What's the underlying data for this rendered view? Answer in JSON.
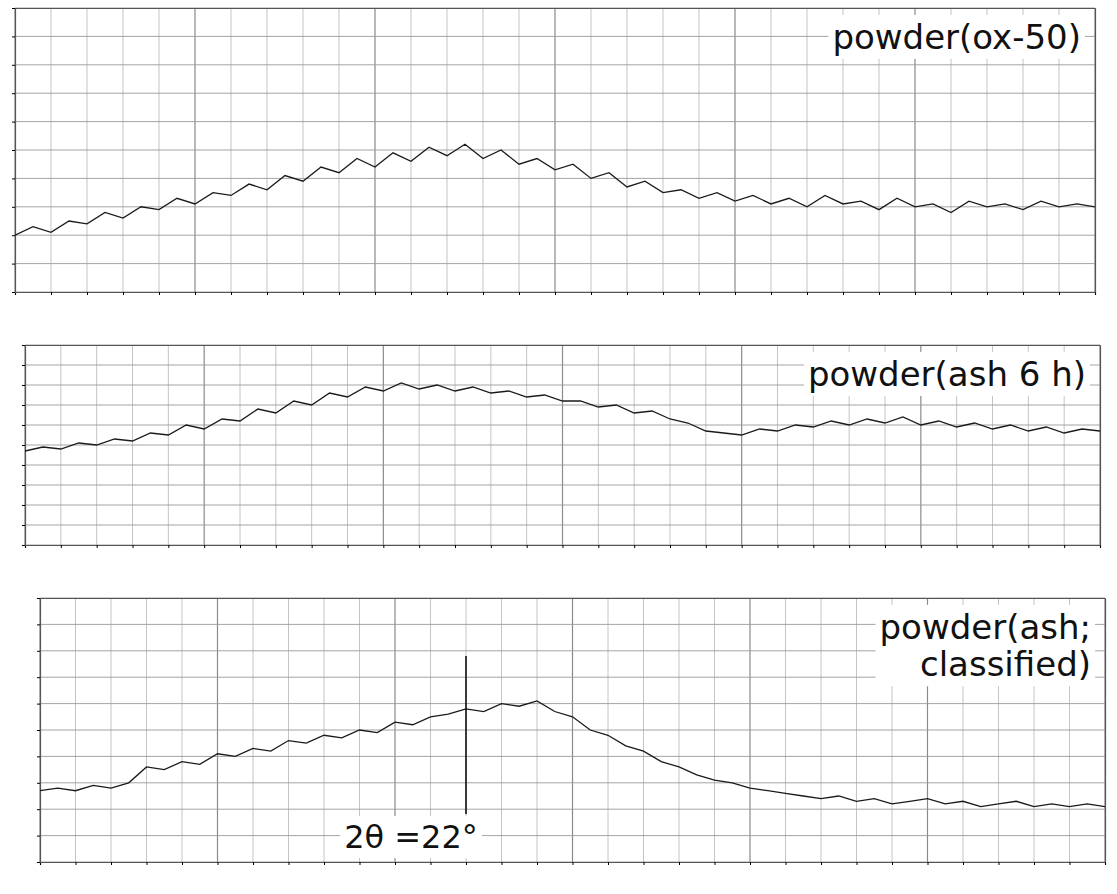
{
  "chart_data": [
    {
      "type": "line",
      "title": "powder(ox-50)",
      "color": "#1a1a1a",
      "grid": true,
      "tick_labels": false,
      "xlim": [
        10,
        40
      ],
      "ylim": [
        0,
        100
      ],
      "xticks": [
        10,
        11,
        12,
        13,
        14,
        15,
        16,
        17,
        18,
        19,
        20,
        21,
        22,
        23,
        24,
        25,
        26,
        27,
        28,
        29,
        30,
        31,
        32,
        33,
        34,
        35,
        36,
        37,
        38,
        39,
        40
      ],
      "yticks": [
        0,
        10,
        20,
        30,
        40,
        50,
        60,
        70,
        80,
        90,
        100
      ],
      "x": [
        10,
        10.5,
        11,
        11.5,
        12,
        12.5,
        13,
        13.5,
        14,
        14.5,
        15,
        15.5,
        16,
        16.5,
        17,
        17.5,
        18,
        18.5,
        19,
        19.5,
        20,
        20.5,
        21,
        21.5,
        22,
        22.5,
        23,
        23.5,
        24,
        24.5,
        25,
        25.5,
        26,
        26.5,
        27,
        27.5,
        28,
        28.5,
        29,
        29.5,
        30,
        30.5,
        31,
        31.5,
        32,
        32.5,
        33,
        33.5,
        34,
        34.5,
        35,
        35.5,
        36,
        36.5,
        37,
        37.5,
        38,
        38.5,
        39,
        39.5,
        40
      ],
      "values": [
        20,
        23,
        21,
        25,
        24,
        28,
        26,
        30,
        29,
        33,
        31,
        35,
        34,
        38,
        36,
        41,
        39,
        44,
        42,
        47,
        44,
        49,
        46,
        51,
        48,
        52,
        47,
        50,
        45,
        47,
        43,
        45,
        40,
        42,
        37,
        39,
        35,
        36,
        33,
        35,
        32,
        34,
        31,
        33,
        30,
        34,
        31,
        32,
        29,
        33,
        30,
        31,
        28,
        32,
        30,
        31,
        29,
        32,
        30,
        31,
        30
      ]
    },
    {
      "type": "line",
      "title": "powder(ash 6 h)",
      "color": "#1a1a1a",
      "grid": true,
      "tick_labels": false,
      "xlim": [
        10,
        40
      ],
      "ylim": [
        0,
        100
      ],
      "xticks": [
        10,
        11,
        12,
        13,
        14,
        15,
        16,
        17,
        18,
        19,
        20,
        21,
        22,
        23,
        24,
        25,
        26,
        27,
        28,
        29,
        30,
        31,
        32,
        33,
        34,
        35,
        36,
        37,
        38,
        39,
        40
      ],
      "yticks": [
        0,
        10,
        20,
        30,
        40,
        50,
        60,
        70,
        80,
        90,
        100
      ],
      "x": [
        10,
        10.5,
        11,
        11.5,
        12,
        12.5,
        13,
        13.5,
        14,
        14.5,
        15,
        15.5,
        16,
        16.5,
        17,
        17.5,
        18,
        18.5,
        19,
        19.5,
        20,
        20.5,
        21,
        21.5,
        22,
        22.5,
        23,
        23.5,
        24,
        24.5,
        25,
        25.5,
        26,
        26.5,
        27,
        27.5,
        28,
        28.5,
        29,
        29.5,
        30,
        30.5,
        31,
        31.5,
        32,
        32.5,
        33,
        33.5,
        34,
        34.5,
        35,
        35.5,
        36,
        36.5,
        37,
        37.5,
        38,
        38.5,
        39,
        39.5,
        40
      ],
      "values": [
        47,
        49,
        48,
        51,
        50,
        53,
        52,
        56,
        55,
        60,
        58,
        63,
        62,
        68,
        66,
        72,
        70,
        76,
        74,
        79,
        77,
        81,
        78,
        80,
        77,
        79,
        76,
        77,
        74,
        75,
        72,
        72,
        69,
        70,
        66,
        67,
        63,
        61,
        57,
        56,
        55,
        58,
        57,
        60,
        59,
        62,
        60,
        63,
        61,
        64,
        60,
        62,
        59,
        61,
        58,
        60,
        57,
        59,
        56,
        58,
        57
      ]
    },
    {
      "type": "line",
      "title": "powder(ash; classified)",
      "color": "#1a1a1a",
      "grid": true,
      "tick_labels": false,
      "xlim": [
        10,
        40
      ],
      "ylim": [
        0,
        100
      ],
      "xticks": [
        10,
        11,
        12,
        13,
        14,
        15,
        16,
        17,
        18,
        19,
        20,
        21,
        22,
        23,
        24,
        25,
        26,
        27,
        28,
        29,
        30,
        31,
        32,
        33,
        34,
        35,
        36,
        37,
        38,
        39,
        40
      ],
      "yticks": [
        0,
        10,
        20,
        30,
        40,
        50,
        60,
        70,
        80,
        90,
        100
      ],
      "x": [
        10,
        10.5,
        11,
        11.5,
        12,
        12.5,
        13,
        13.5,
        14,
        14.5,
        15,
        15.5,
        16,
        16.5,
        17,
        17.5,
        18,
        18.5,
        19,
        19.5,
        20,
        20.5,
        21,
        21.5,
        22,
        22.5,
        23,
        23.5,
        24,
        24.5,
        25,
        25.5,
        26,
        26.5,
        27,
        27.5,
        28,
        28.5,
        29,
        29.5,
        30,
        30.5,
        31,
        31.5,
        32,
        32.5,
        33,
        33.5,
        34,
        34.5,
        35,
        35.5,
        36,
        36.5,
        37,
        37.5,
        38,
        38.5,
        39,
        39.5,
        40
      ],
      "values": [
        27,
        28,
        27,
        29,
        28,
        30,
        36,
        35,
        38,
        37,
        41,
        40,
        43,
        42,
        46,
        45,
        48,
        47,
        50,
        49,
        53,
        52,
        55,
        56,
        58,
        57,
        60,
        59,
        61,
        57,
        55,
        50,
        48,
        44,
        42,
        38,
        36,
        33,
        31,
        30,
        28,
        27,
        26,
        25,
        24,
        25,
        23,
        24,
        22,
        23,
        24,
        22,
        23,
        21,
        22,
        23,
        21,
        22,
        21,
        22,
        21
      ],
      "annotations": [
        {
          "text": "2θ =22°",
          "x": 22
        }
      ]
    }
  ]
}
